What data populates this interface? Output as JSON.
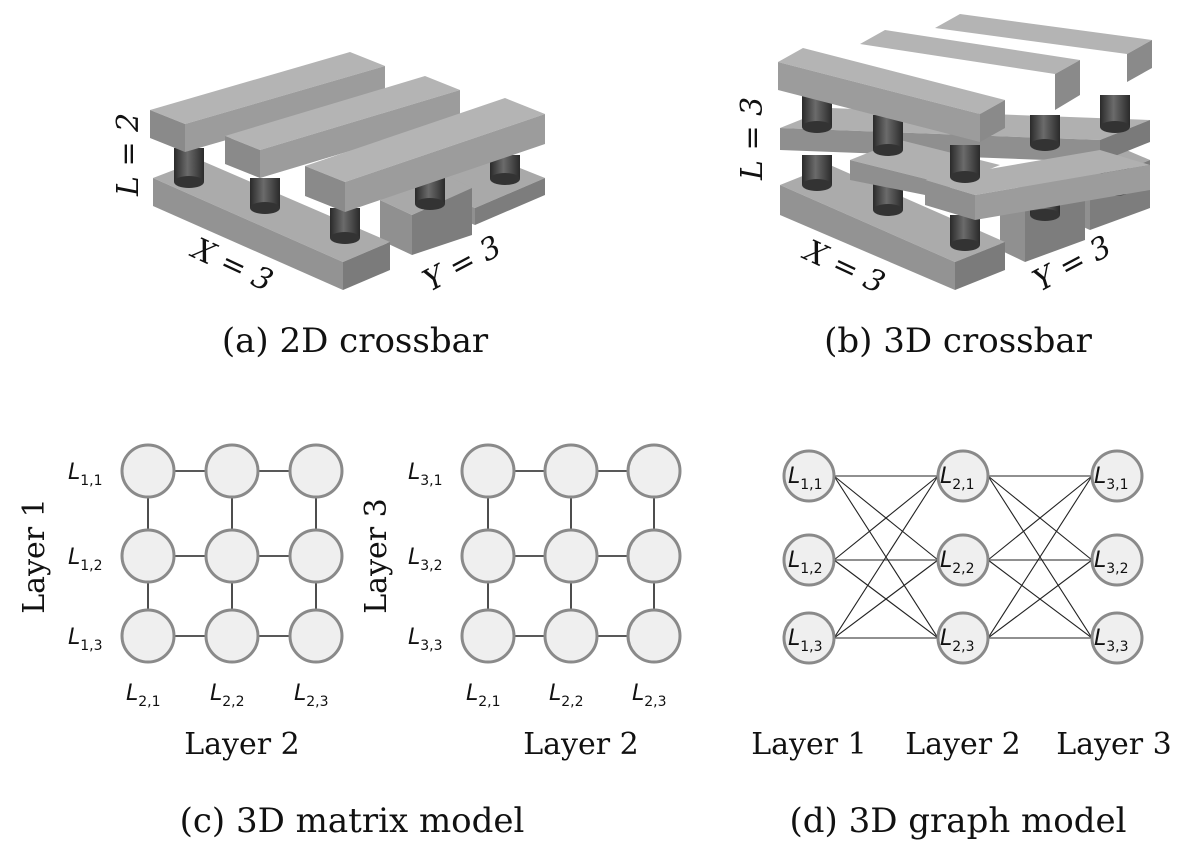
{
  "captions": {
    "a": "(a) 2D crossbar",
    "b": "(b) 3D crossbar",
    "c": "(c) 3D matrix model",
    "d": "(d) 3D graph model"
  },
  "crossbar_2d": {
    "L": "L = 2",
    "X": "X = 3",
    "Y": "Y = 3"
  },
  "crossbar_3d": {
    "L": "L = 3",
    "X": "X = 3",
    "Y": "Y = 3"
  },
  "matrix_left": {
    "side_label": "Layer 1",
    "bottom_label": "Layer 2",
    "row_labels": [
      {
        "base": "L",
        "sub": "1,1"
      },
      {
        "base": "L",
        "sub": "1,2"
      },
      {
        "base": "L",
        "sub": "1,3"
      }
    ],
    "col_labels": [
      {
        "base": "L",
        "sub": "2,1"
      },
      {
        "base": "L",
        "sub": "2,2"
      },
      {
        "base": "L",
        "sub": "2,3"
      }
    ]
  },
  "matrix_right": {
    "side_label": "Layer 3",
    "bottom_label": "Layer 2",
    "row_labels": [
      {
        "base": "L",
        "sub": "3,1"
      },
      {
        "base": "L",
        "sub": "3,2"
      },
      {
        "base": "L",
        "sub": "3,3"
      }
    ],
    "col_labels": [
      {
        "base": "L",
        "sub": "2,1"
      },
      {
        "base": "L",
        "sub": "2,2"
      },
      {
        "base": "L",
        "sub": "2,3"
      }
    ]
  },
  "graph": {
    "layers": [
      "Layer 1",
      "Layer 2",
      "Layer 3"
    ],
    "nodes": [
      [
        {
          "base": "L",
          "sub": "1,1"
        },
        {
          "base": "L",
          "sub": "1,2"
        },
        {
          "base": "L",
          "sub": "1,3"
        }
      ],
      [
        {
          "base": "L",
          "sub": "2,1"
        },
        {
          "base": "L",
          "sub": "2,2"
        },
        {
          "base": "L",
          "sub": "2,3"
        }
      ],
      [
        {
          "base": "L",
          "sub": "3,1"
        },
        {
          "base": "L",
          "sub": "3,2"
        },
        {
          "base": "L",
          "sub": "3,3"
        }
      ]
    ]
  }
}
